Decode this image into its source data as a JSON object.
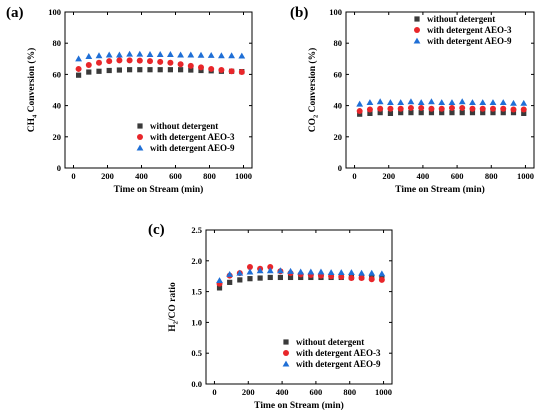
{
  "chart_data": [
    {
      "panel_label": "(a)",
      "type": "scatter",
      "xlabel": "Time on Stream (min)",
      "ylabel_parts": [
        "CH",
        "4",
        " Conversion (%)"
      ],
      "xlim": [
        -50,
        1050
      ],
      "ylim": [
        0,
        100
      ],
      "xticks": [
        0,
        200,
        400,
        600,
        800,
        1000
      ],
      "yticks": [
        0,
        20,
        40,
        60,
        80,
        100
      ],
      "legend_position": "bottom-right",
      "x": [
        30,
        90,
        150,
        210,
        270,
        330,
        390,
        450,
        510,
        570,
        630,
        690,
        750,
        810,
        870,
        930,
        990
      ],
      "series": [
        {
          "name": "without detergent",
          "marker": "square",
          "color": "#3a3a3a",
          "values": [
            59.5,
            61.5,
            62,
            62.5,
            62.8,
            63,
            63,
            63,
            63,
            63,
            63,
            62.8,
            62.5,
            62.3,
            62,
            62,
            61.8
          ]
        },
        {
          "name": "with detergent AEO-3",
          "marker": "circle",
          "color": "#e8262a",
          "values": [
            63.5,
            66,
            67.5,
            68.5,
            69,
            69,
            68.8,
            68.5,
            68,
            67.5,
            66.5,
            65.5,
            64.5,
            63.5,
            62.8,
            62,
            61.5
          ]
        },
        {
          "name": "with detergent AEO-9",
          "marker": "triangle",
          "color": "#1f6fd6",
          "values": [
            70,
            71.5,
            72,
            72.5,
            72.5,
            73,
            73,
            72.8,
            72.8,
            72.8,
            72.5,
            72.5,
            72.3,
            72.2,
            72,
            72,
            71.8
          ]
        }
      ]
    },
    {
      "panel_label": "(b)",
      "type": "scatter",
      "xlabel": "Time on Stream (min)",
      "ylabel_parts": [
        "CO",
        "2",
        " Conversion (%)"
      ],
      "xlim": [
        -50,
        1050
      ],
      "ylim": [
        0,
        100
      ],
      "xticks": [
        0,
        200,
        400,
        600,
        800,
        1000
      ],
      "yticks": [
        0,
        20,
        40,
        60,
        80,
        100
      ],
      "legend_position": "top-right",
      "x": [
        30,
        90,
        150,
        210,
        270,
        330,
        390,
        450,
        510,
        570,
        630,
        690,
        750,
        810,
        870,
        930,
        990
      ],
      "series": [
        {
          "name": "without detergent",
          "marker": "square",
          "color": "#3a3a3a",
          "values": [
            34.5,
            35,
            35.5,
            35,
            35.5,
            35.5,
            35.5,
            35.5,
            35.5,
            35.5,
            35.5,
            35.5,
            35.5,
            35.5,
            35.5,
            35.5,
            35
          ]
        },
        {
          "name": "with detergent AEO-3",
          "marker": "circle",
          "color": "#e8262a",
          "values": [
            36.5,
            37.5,
            38,
            38,
            38,
            38.5,
            38.5,
            38,
            38,
            38.5,
            38.5,
            38,
            38,
            38,
            38,
            37.5,
            37.5
          ]
        },
        {
          "name": "with detergent AEO-9",
          "marker": "triangle",
          "color": "#1f6fd6",
          "values": [
            41,
            42,
            42.5,
            42,
            42,
            42.5,
            42,
            42.5,
            42,
            42,
            42.5,
            42,
            42,
            42,
            42,
            41.5,
            41.5
          ]
        }
      ]
    },
    {
      "panel_label": "(c)",
      "type": "scatter",
      "xlabel": "Time on Stream (min)",
      "ylabel_parts": [
        "H",
        "2",
        "/CO ratio"
      ],
      "xlim": [
        -50,
        1050
      ],
      "ylim": [
        0,
        2.5
      ],
      "xticks": [
        0,
        200,
        400,
        600,
        800,
        1000
      ],
      "yticks": [
        0.0,
        0.5,
        1.0,
        1.5,
        2.0,
        2.5
      ],
      "ytick_labels": [
        "0.0",
        "0.5",
        "1.0",
        "1.5",
        "2.0",
        "2.5"
      ],
      "legend_position": "bottom-right",
      "x": [
        30,
        90,
        150,
        210,
        270,
        330,
        390,
        450,
        510,
        570,
        630,
        690,
        750,
        810,
        870,
        930,
        990
      ],
      "series": [
        {
          "name": "without detergent",
          "marker": "square",
          "color": "#3a3a3a",
          "values": [
            1.56,
            1.65,
            1.69,
            1.71,
            1.72,
            1.73,
            1.73,
            1.73,
            1.73,
            1.73,
            1.73,
            1.73,
            1.73,
            1.73,
            1.73,
            1.73,
            1.72
          ]
        },
        {
          "name": "with detergent AEO-3",
          "marker": "circle",
          "color": "#e8262a",
          "values": [
            1.63,
            1.76,
            1.8,
            1.9,
            1.87,
            1.9,
            1.83,
            1.8,
            1.78,
            1.77,
            1.76,
            1.75,
            1.74,
            1.72,
            1.72,
            1.7,
            1.69
          ]
        },
        {
          "name": "with detergent AEO-9",
          "marker": "triangle",
          "color": "#1f6fd6",
          "values": [
            1.68,
            1.78,
            1.8,
            1.82,
            1.84,
            1.84,
            1.84,
            1.83,
            1.82,
            1.82,
            1.82,
            1.81,
            1.81,
            1.81,
            1.8,
            1.8,
            1.79
          ]
        }
      ]
    }
  ]
}
